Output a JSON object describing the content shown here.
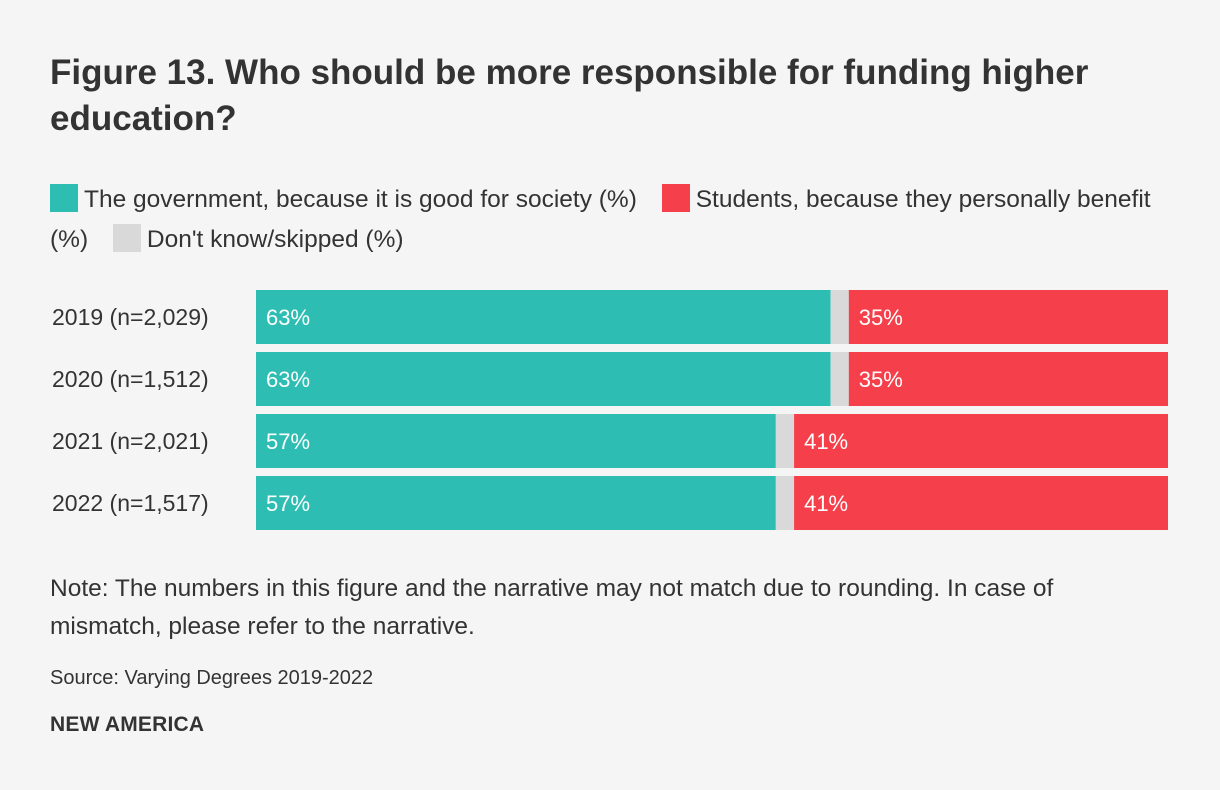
{
  "title": "Figure 13. Who should be more responsible for funding higher education?",
  "note": "Note: The numbers in this figure and the narrative may not match due to rounding. In case of mismatch, please refer to the narrative.",
  "source": "Source: Varying Degrees 2019-2022",
  "brand": "NEW AMERICA",
  "legend": [
    {
      "label": "The government, because it is good for society (%)",
      "color": "#2ebdb3"
    },
    {
      "label": "Students, because they personally benefit (%)",
      "color": "#f53f4b"
    },
    {
      "label": "Don't know/skipped (%)",
      "color": "#d9d9d9"
    }
  ],
  "chart_data": {
    "type": "bar",
    "orientation": "horizontal",
    "stacked": true,
    "categories": [
      "2019 (n=2,029)",
      "2020 (n=1,512)",
      "2021 (n=2,021)",
      "2022 (n=1,517)"
    ],
    "series": [
      {
        "name": "The government, because it is good for society (%)",
        "color": "#2ebdb3",
        "values": [
          63,
          63,
          57,
          57
        ],
        "labels": [
          "63%",
          "63%",
          "57%",
          "57%"
        ]
      },
      {
        "name": "Don't know/skipped (%)",
        "color": "#d9d9d9",
        "values": [
          2,
          2,
          2,
          2
        ],
        "labels": [
          "",
          "",
          "",
          ""
        ]
      },
      {
        "name": "Students, because they personally benefit (%)",
        "color": "#f53f4b",
        "values": [
          35,
          35,
          41,
          41
        ],
        "labels": [
          "35%",
          "35%",
          "41%",
          "41%"
        ]
      }
    ],
    "xlim": [
      0,
      100
    ],
    "grid": false,
    "legend_position": "top"
  }
}
